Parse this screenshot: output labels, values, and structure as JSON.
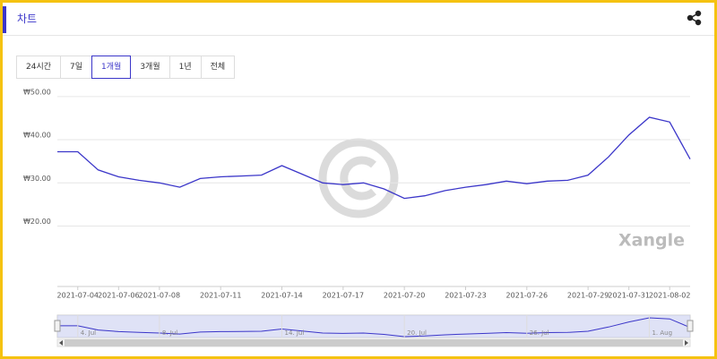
{
  "header": {
    "title": "차트"
  },
  "tabs": {
    "items": [
      "24시간",
      "7일",
      "1개월",
      "3개월",
      "1년",
      "전체"
    ],
    "selected": 2
  },
  "watermark": "Xangle",
  "chart_data": {
    "type": "line",
    "x": [
      "2021-07-03",
      "2021-07-04",
      "2021-07-05",
      "2021-07-06",
      "2021-07-07",
      "2021-07-08",
      "2021-07-09",
      "2021-07-10",
      "2021-07-11",
      "2021-07-12",
      "2021-07-13",
      "2021-07-14",
      "2021-07-15",
      "2021-07-16",
      "2021-07-17",
      "2021-07-18",
      "2021-07-19",
      "2021-07-20",
      "2021-07-21",
      "2021-07-22",
      "2021-07-23",
      "2021-07-24",
      "2021-07-25",
      "2021-07-26",
      "2021-07-27",
      "2021-07-28",
      "2021-07-29",
      "2021-07-30",
      "2021-07-31",
      "2021-08-01",
      "2021-08-02",
      "2021-08-03"
    ],
    "series": [
      {
        "color": "#3b36c9",
        "values": [
          37.2,
          37.2,
          33.0,
          31.4,
          30.6,
          30.0,
          29.0,
          31.0,
          31.4,
          31.6,
          31.8,
          34.0,
          32.0,
          30.0,
          29.6,
          30.0,
          28.6,
          26.4,
          27.0,
          28.2,
          29.0,
          29.6,
          30.4,
          29.8,
          30.4,
          30.6,
          31.8,
          36.0,
          41.1,
          45.2,
          44.1,
          35.5
        ]
      }
    ],
    "xlim": [
      "2021-07-03",
      "2021-08-03"
    ],
    "xticks": [
      "2021-07-04",
      "2021-07-06",
      "2021-07-08",
      "2021-07-11",
      "2021-07-14",
      "2021-07-17",
      "2021-07-20",
      "2021-07-23",
      "2021-07-26",
      "2021-07-29",
      "2021-07-31",
      "2021-08-02"
    ],
    "ylim": [
      6,
      51
    ],
    "yticks": [
      {
        "value": 50,
        "label": "₩50.00"
      },
      {
        "value": 40,
        "label": "₩40.00"
      },
      {
        "value": 30,
        "label": "₩30.00"
      },
      {
        "value": 20,
        "label": "₩20.00"
      }
    ],
    "grid": true
  },
  "navigator": {
    "labels": [
      {
        "value": "2021-07-04",
        "label": "4. Jul"
      },
      {
        "value": "2021-07-08",
        "label": "8. Jul"
      },
      {
        "value": "2021-07-14",
        "label": "14. Jul"
      },
      {
        "value": "2021-07-20",
        "label": "20. Jul"
      },
      {
        "value": "2021-07-26",
        "label": "26. Jul"
      },
      {
        "value": "2021-08-01",
        "label": "1. Aug"
      }
    ]
  }
}
